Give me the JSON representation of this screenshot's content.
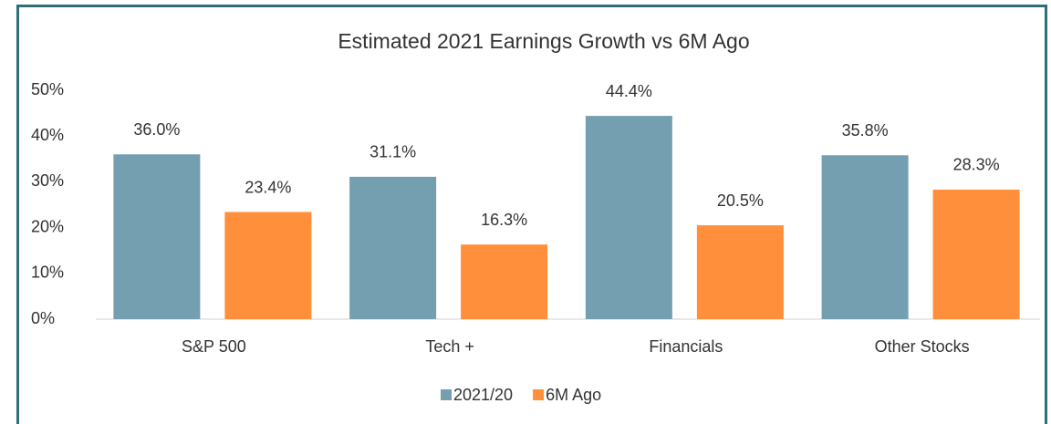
{
  "chart_data": {
    "type": "bar",
    "title": "Estimated 2021 Earnings Growth vs 6M Ago",
    "categories": [
      "S&P 500",
      "Tech +",
      "Financials",
      "Other Stocks"
    ],
    "series": [
      {
        "name": "2021/20",
        "color": "#739fb0",
        "values": [
          36.0,
          31.1,
          44.4,
          35.8
        ],
        "value_labels": [
          "36.0%",
          "31.1%",
          "44.4%",
          "35.8%"
        ]
      },
      {
        "name": "6M Ago",
        "color": "#ff8f3a",
        "values": [
          23.4,
          16.3,
          20.5,
          28.3
        ],
        "value_labels": [
          "23.4%",
          "16.3%",
          "20.5%",
          "28.3%"
        ]
      }
    ],
    "ylim": [
      0,
      50
    ],
    "yticks": [
      {
        "value": 0,
        "label": "0%"
      },
      {
        "value": 10,
        "label": "10%"
      },
      {
        "value": 20,
        "label": "20%"
      },
      {
        "value": 30,
        "label": "30%"
      },
      {
        "value": 40,
        "label": "40%"
      },
      {
        "value": 50,
        "label": "50%"
      }
    ],
    "legend": "bottom"
  }
}
